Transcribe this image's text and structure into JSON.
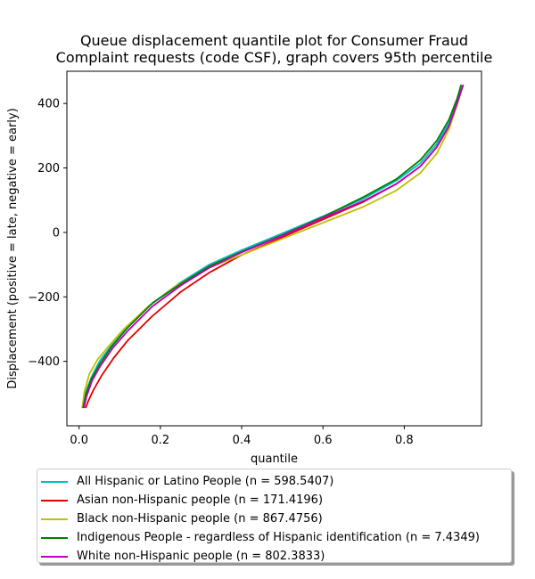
{
  "chart_data": {
    "type": "line",
    "title": [
      "Queue displacement quantile plot for Consumer Fraud",
      "Complaint  requests (code CSF), graph covers 95th percentile"
    ],
    "xlabel": "quantile",
    "ylabel": "Displacement (positive = late, negative = early)",
    "xlim": [
      -0.03,
      0.99
    ],
    "ylim": [
      -600,
      500
    ],
    "xticks": [
      0.0,
      0.2,
      0.4,
      0.6,
      0.8
    ],
    "xtick_labels": [
      "0.0",
      "0.2",
      "0.4",
      "0.6",
      "0.8"
    ],
    "yticks": [
      -400,
      -200,
      0,
      200,
      400
    ],
    "ytick_labels": [
      "−400",
      "−200",
      "0",
      "200",
      "400"
    ],
    "grid": false,
    "legend_position": "below plot",
    "series": [
      {
        "name": "All Hispanic or Latino People (n = 598.5407)",
        "color": "#00bfbf",
        "x": [
          0.008,
          0.015,
          0.03,
          0.05,
          0.08,
          0.12,
          0.18,
          0.25,
          0.32,
          0.4,
          0.5,
          0.6,
          0.7,
          0.78,
          0.84,
          0.88,
          0.91,
          0.93,
          0.94
        ],
        "y": [
          -545,
          -500,
          -450,
          -400,
          -350,
          -290,
          -220,
          -155,
          -100,
          -55,
          -3,
          50,
          105,
          160,
          215,
          275,
          340,
          410,
          458
        ]
      },
      {
        "name": "Asian non-Hispanic people (n = 171.4196)",
        "color": "#e00000",
        "x": [
          0.016,
          0.022,
          0.035,
          0.055,
          0.085,
          0.12,
          0.18,
          0.25,
          0.32,
          0.4,
          0.5,
          0.6,
          0.7,
          0.78,
          0.84,
          0.88,
          0.91,
          0.93,
          0.945
        ],
        "y": [
          -545,
          -525,
          -490,
          -445,
          -390,
          -335,
          -260,
          -185,
          -125,
          -70,
          -15,
          40,
          95,
          150,
          205,
          265,
          330,
          400,
          458
        ]
      },
      {
        "name": "Black non-Hispanic people (n = 867.4756)",
        "color": "#bfbf00",
        "x": [
          0.008,
          0.013,
          0.025,
          0.045,
          0.075,
          0.11,
          0.17,
          0.24,
          0.31,
          0.4,
          0.5,
          0.6,
          0.7,
          0.78,
          0.84,
          0.88,
          0.91,
          0.93,
          0.945
        ],
        "y": [
          -545,
          -495,
          -440,
          -395,
          -350,
          -300,
          -230,
          -165,
          -115,
          -70,
          -20,
          30,
          80,
          130,
          185,
          245,
          320,
          395,
          458
        ]
      },
      {
        "name": "Indigenous People - regardless of Hispanic identification (n = 7.4349)",
        "color": "#008000",
        "x": [
          0.01,
          0.016,
          0.03,
          0.05,
          0.08,
          0.12,
          0.18,
          0.25,
          0.32,
          0.4,
          0.5,
          0.6,
          0.7,
          0.78,
          0.84,
          0.88,
          0.91,
          0.93,
          0.94
        ],
        "y": [
          -545,
          -505,
          -455,
          -410,
          -355,
          -295,
          -220,
          -160,
          -105,
          -60,
          -8,
          48,
          110,
          165,
          225,
          285,
          350,
          415,
          458
        ]
      },
      {
        "name": "White non-Hispanic people (n = 802.3833)",
        "color": "#bf00bf",
        "x": [
          0.012,
          0.018,
          0.032,
          0.052,
          0.082,
          0.12,
          0.18,
          0.25,
          0.32,
          0.4,
          0.5,
          0.6,
          0.7,
          0.78,
          0.84,
          0.88,
          0.91,
          0.93,
          0.945
        ],
        "y": [
          -545,
          -510,
          -460,
          -415,
          -360,
          -305,
          -230,
          -165,
          -110,
          -62,
          -10,
          45,
          98,
          150,
          205,
          265,
          330,
          400,
          458
        ]
      }
    ]
  }
}
